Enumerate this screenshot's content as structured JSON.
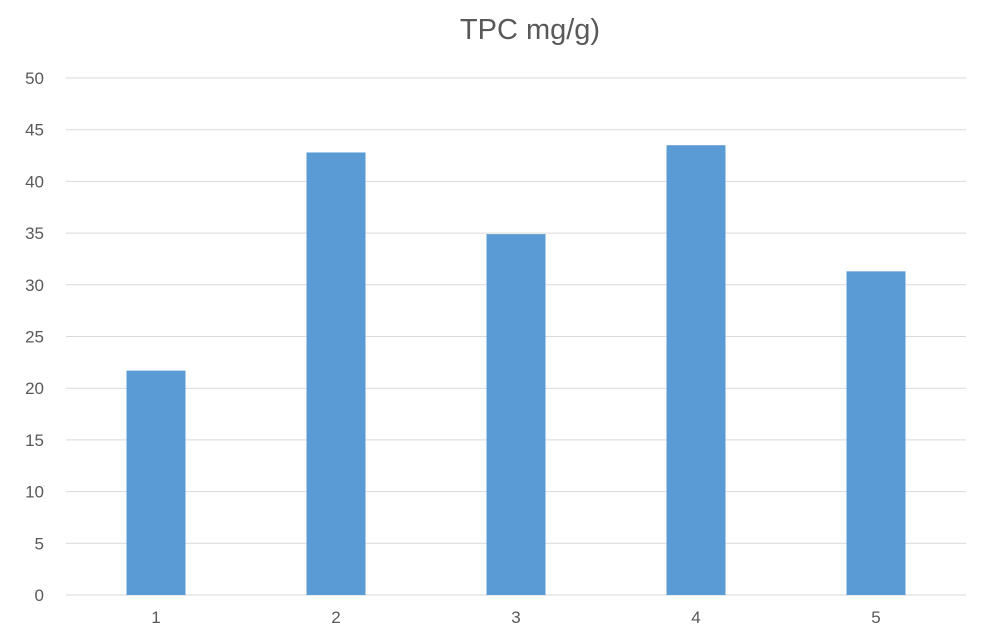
{
  "chart_data": {
    "type": "bar",
    "title": "TPC mg/g)",
    "xlabel": "",
    "ylabel": "",
    "categories": [
      "1",
      "2",
      "3",
      "4",
      "5"
    ],
    "values": [
      21.7,
      42.8,
      34.9,
      43.5,
      31.3
    ],
    "ylim": [
      0,
      50
    ],
    "y_ticks": [
      "0",
      "5",
      "10",
      "15",
      "20",
      "25",
      "30",
      "35",
      "40",
      "45",
      "50"
    ],
    "grid": true,
    "legend": "none",
    "bar_color": "#5b9bd5"
  }
}
